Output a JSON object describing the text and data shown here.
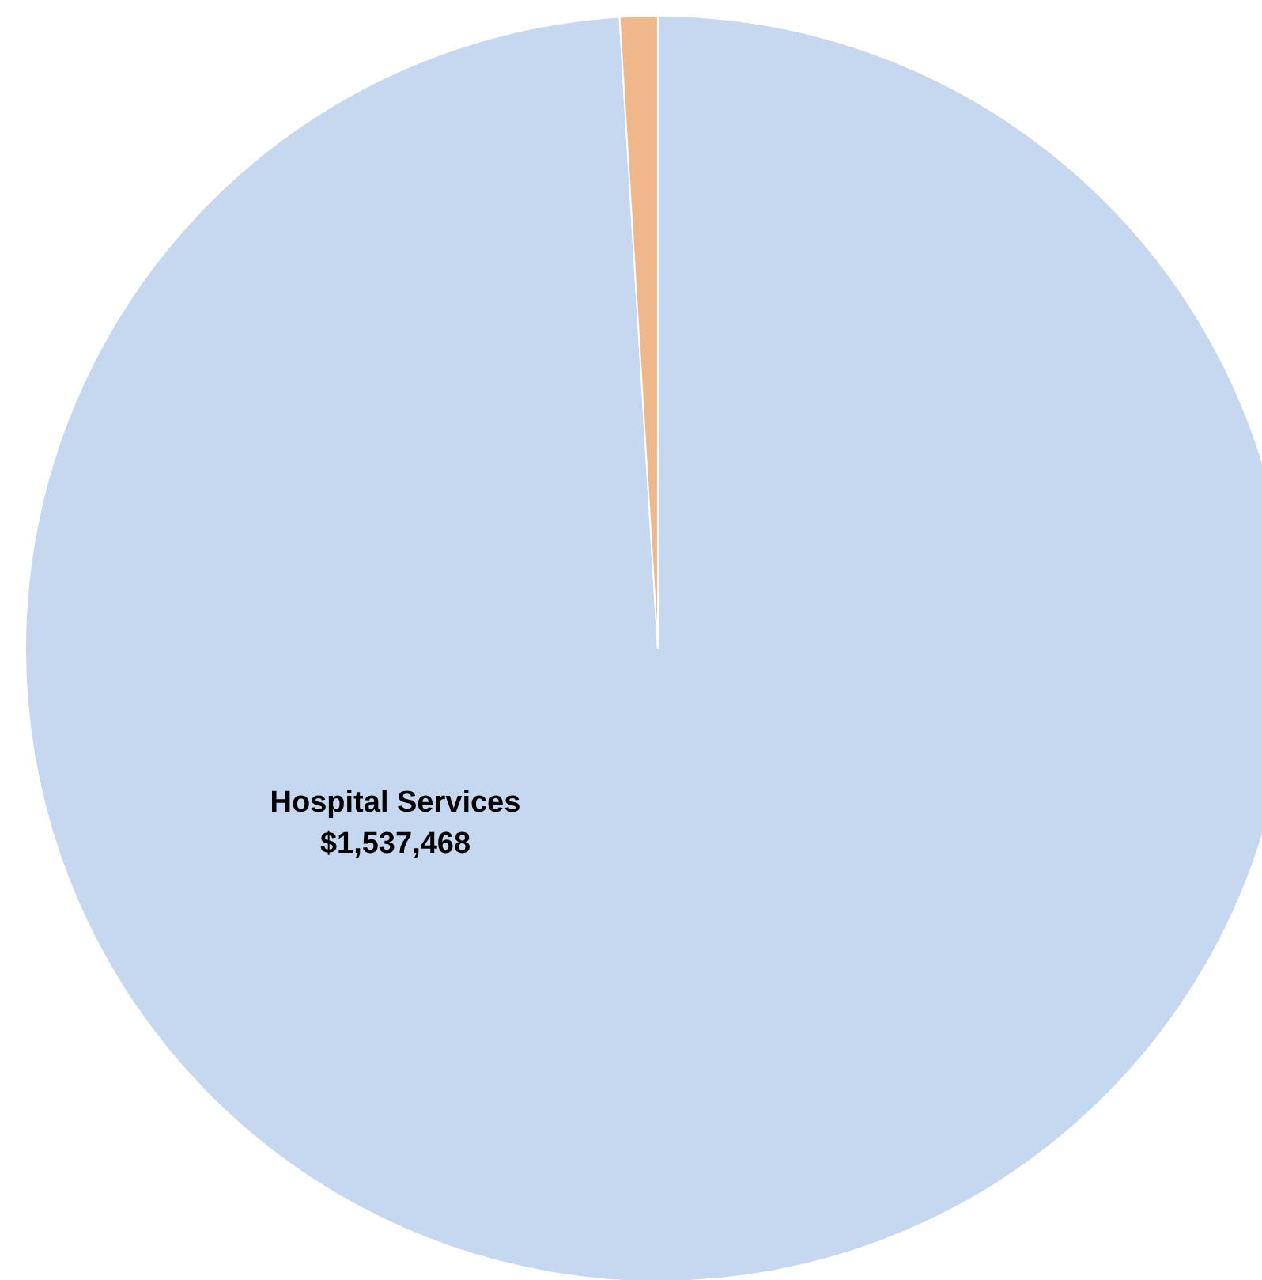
{
  "chart_data": {
    "type": "pie",
    "categories": [
      "Hospital Services",
      null
    ],
    "values": [
      1537468,
      15000
    ],
    "colors": [
      "#c6d8ef",
      "#f0b88a"
    ],
    "value_labels": [
      "$1,537,468",
      null
    ]
  }
}
